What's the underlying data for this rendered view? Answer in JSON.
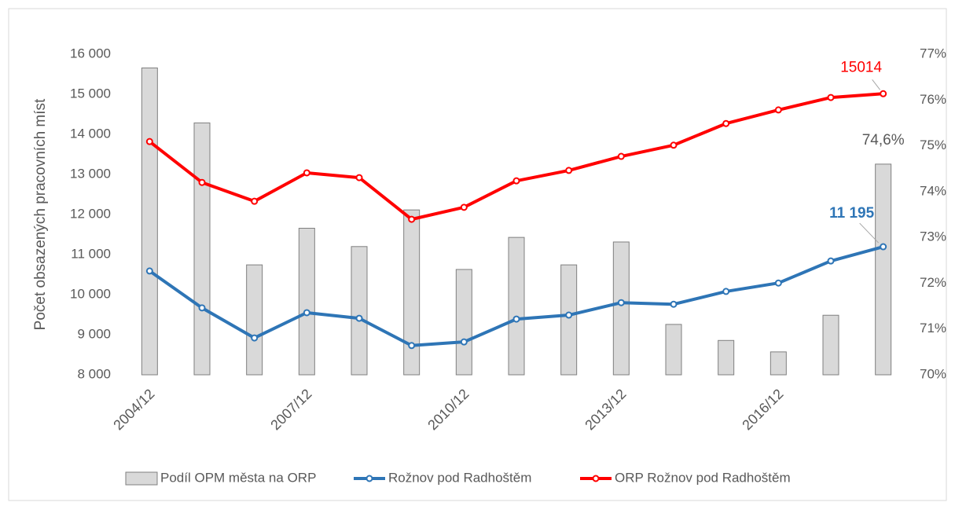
{
  "chart_data": {
    "type": "combo",
    "y_label": "Počet obsazených pracovních míst",
    "categories": [
      "2004/12",
      null,
      null,
      "2007/12",
      null,
      null,
      "2010/12",
      null,
      null,
      "2013/12",
      null,
      null,
      "2016/12",
      null,
      null
    ],
    "ylim": [
      8000,
      16000
    ],
    "yticks": [
      {
        "value": 8000,
        "label": "8 000"
      },
      {
        "value": 9000,
        "label": "9 000"
      },
      {
        "value": 10000,
        "label": "10 000"
      },
      {
        "value": 11000,
        "label": "11 000"
      },
      {
        "value": 12000,
        "label": "12 000"
      },
      {
        "value": 13000,
        "label": "13 000"
      },
      {
        "value": 14000,
        "label": "14 000"
      },
      {
        "value": 15000,
        "label": "15 000"
      },
      {
        "value": 16000,
        "label": "16 000"
      }
    ],
    "y2lim": [
      70,
      77
    ],
    "y2ticks": [
      {
        "value": 70,
        "label": "70%"
      },
      {
        "value": 71,
        "label": "71%"
      },
      {
        "value": 72,
        "label": "72%"
      },
      {
        "value": 73,
        "label": "73%"
      },
      {
        "value": 74,
        "label": "74%"
      },
      {
        "value": 75,
        "label": "75%"
      },
      {
        "value": 76,
        "label": "76%"
      },
      {
        "value": 77,
        "label": "77%"
      }
    ],
    "grid": false,
    "legend": "bottom",
    "series": [
      {
        "name": "Podíl OPM města na ORP",
        "type": "bar",
        "axis": "y2",
        "color": "#d9d9d9",
        "values": [
          76.7,
          75.5,
          72.4,
          73.2,
          72.8,
          73.6,
          72.3,
          73.0,
          72.4,
          72.9,
          71.1,
          70.75,
          70.5,
          71.3,
          74.6
        ],
        "value_labels": [
          null,
          null,
          null,
          null,
          null,
          null,
          null,
          null,
          null,
          null,
          null,
          null,
          null,
          null,
          "74,6%"
        ]
      },
      {
        "name": "Rožnov pod Radhoštěm",
        "type": "line",
        "color": "#2e75b6",
        "values": [
          10590,
          9670,
          8920,
          9550,
          9410,
          8730,
          8820,
          9390,
          9490,
          9800,
          9760,
          10080,
          10290,
          10840,
          11195
        ],
        "value_labels": [
          null,
          null,
          null,
          null,
          null,
          null,
          null,
          null,
          null,
          null,
          null,
          null,
          null,
          null,
          "11 195"
        ]
      },
      {
        "name": "ORP Rožnov pod Radhoštěm",
        "type": "line",
        "color": "#ff0000",
        "values": [
          13820,
          12800,
          12330,
          13040,
          12920,
          11880,
          12180,
          12840,
          13100,
          13450,
          13730,
          14270,
          14610,
          14920,
          15014
        ]
      }
    ]
  }
}
